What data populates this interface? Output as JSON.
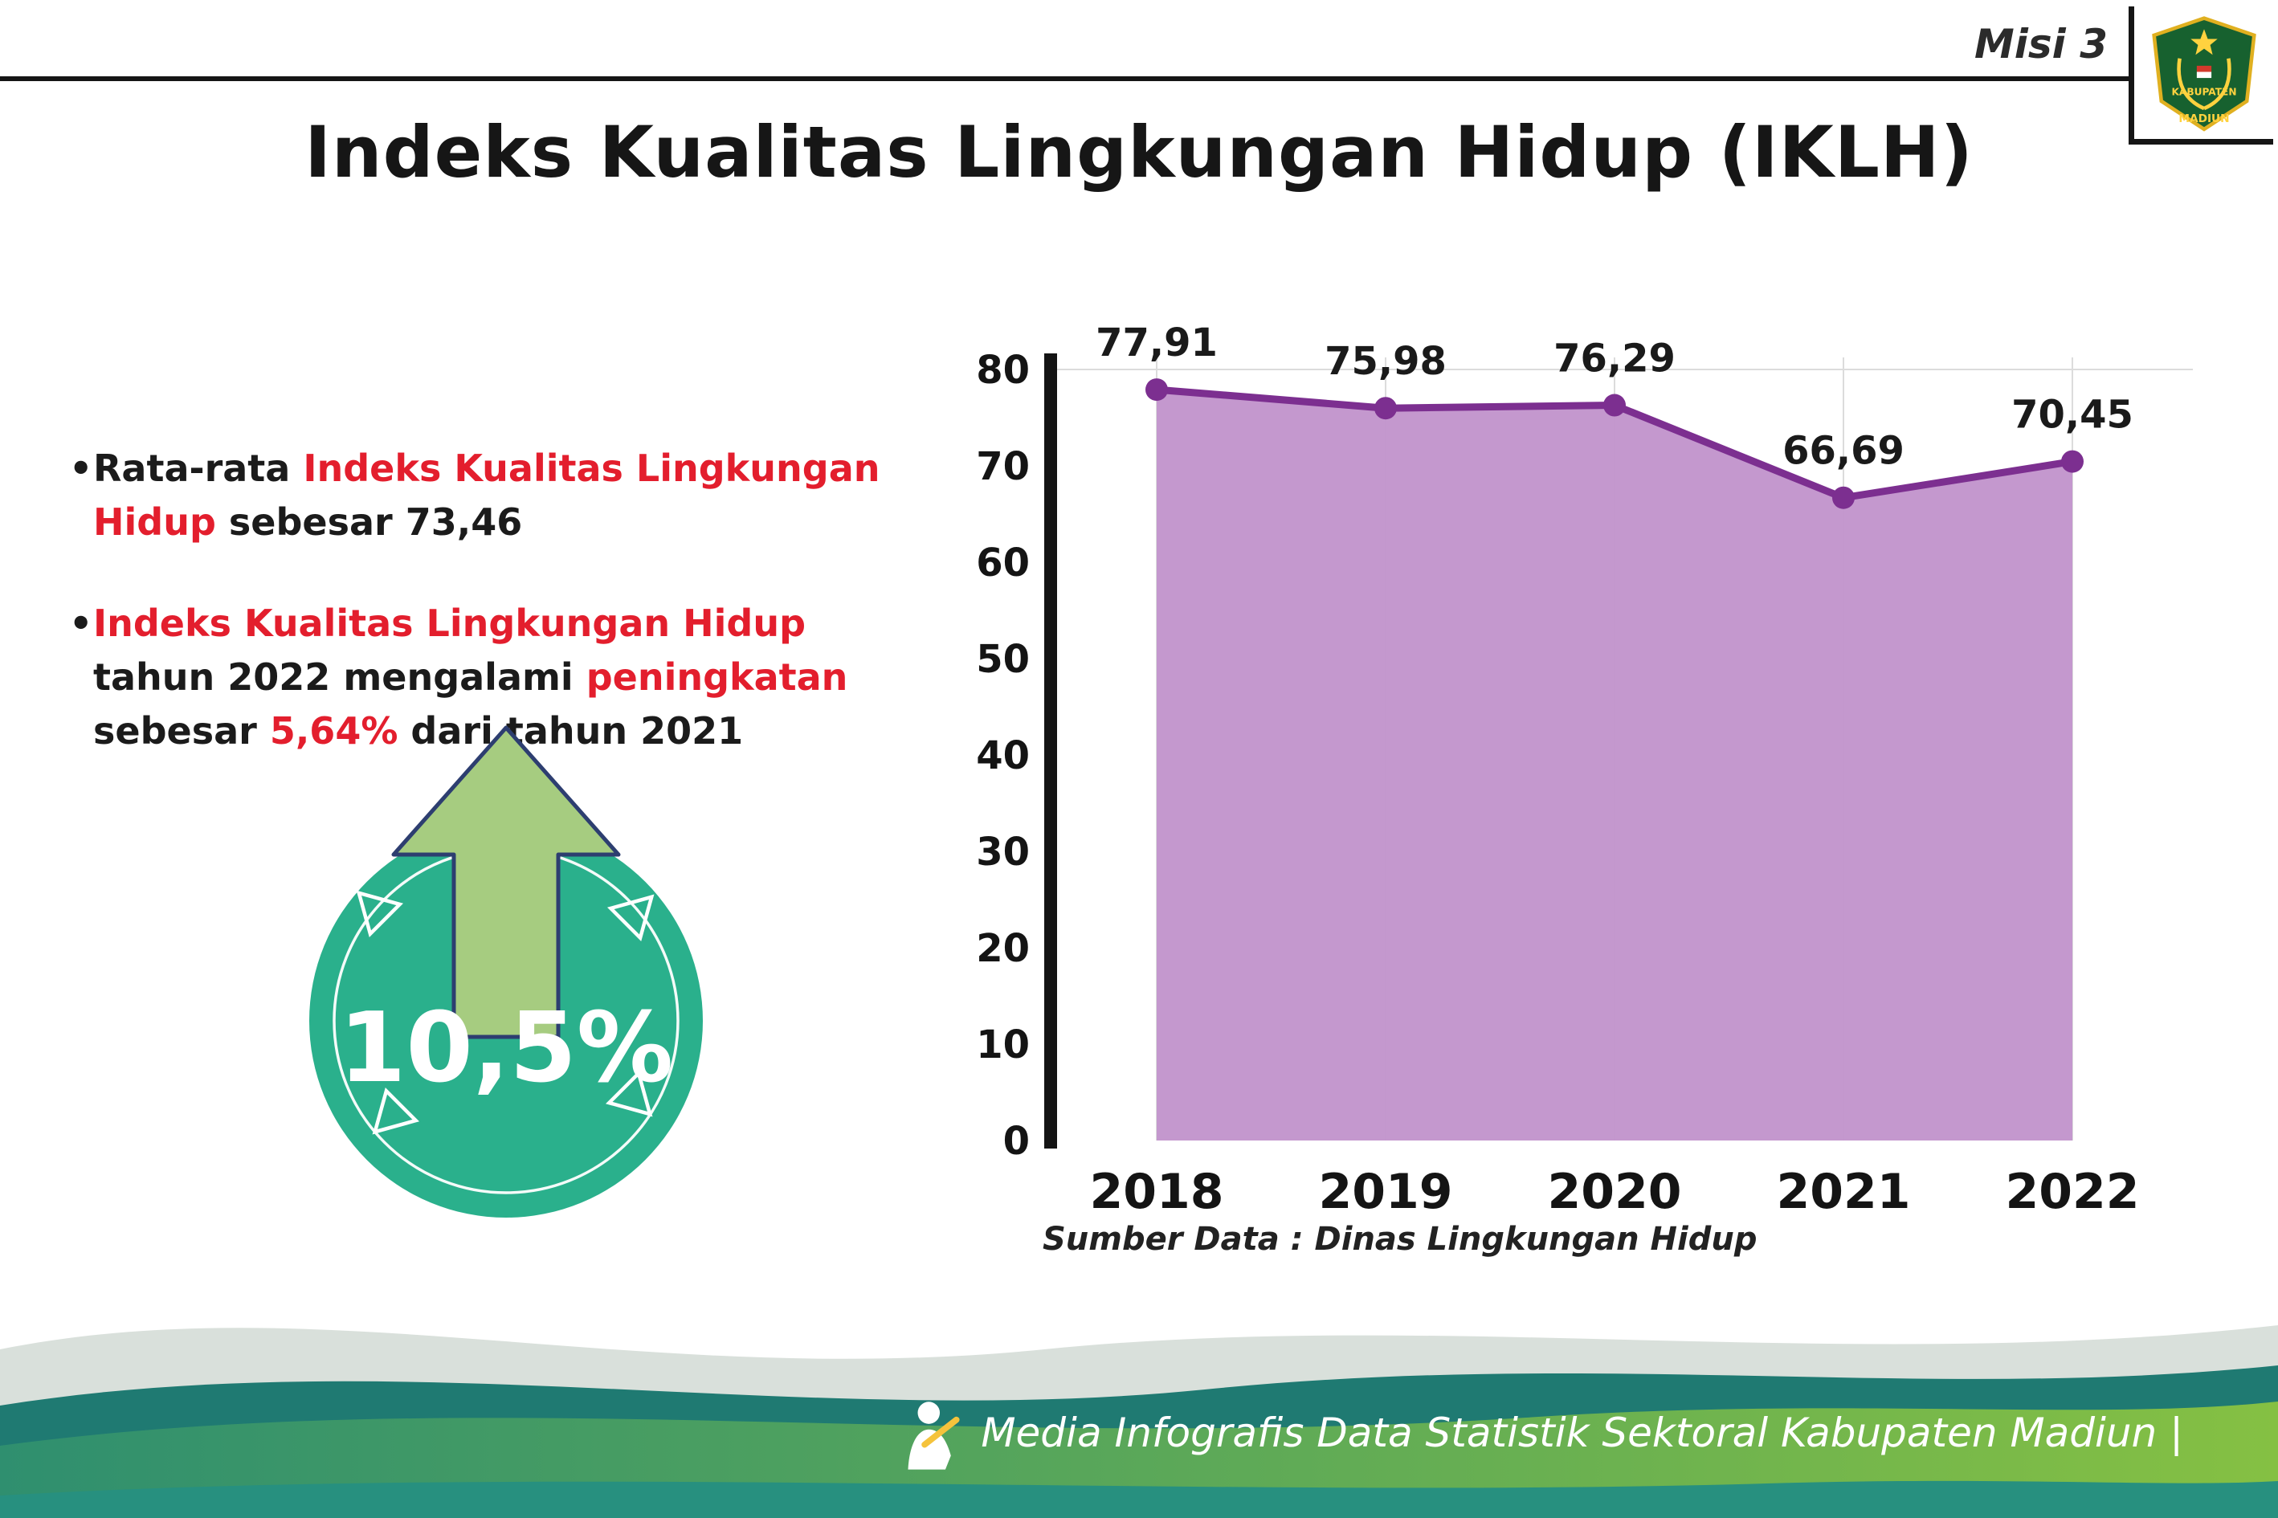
{
  "header": {
    "misi": "Misi 3",
    "title": "Indeks Kualitas Lingkungan Hidup (IKLH)"
  },
  "logo": {
    "line1": "KABUPATEN",
    "line2": "MADIUN"
  },
  "bullets": {
    "b1": {
      "s1": "Rata-rata ",
      "s2": "Indeks Kualitas Lingkungan Hidup",
      "s3": " sebesar 73,46"
    },
    "b2": {
      "s1": "Indeks Kualitas Lingkungan Hidup",
      "s2": " tahun 2022 mengalami ",
      "s3": "peningkatan",
      "s4": " sebesar ",
      "s5": "5,64%",
      "s6": " dari tahun 2021"
    }
  },
  "badge": {
    "value": "10,5%"
  },
  "chart_data": {
    "type": "area",
    "title": "Indeks Kualitas Lingkungan Hidup (IKLH)",
    "categories": [
      "2018",
      "2019",
      "2020",
      "2021",
      "2022"
    ],
    "values": [
      77.91,
      75.98,
      76.29,
      66.69,
      70.45
    ],
    "value_labels": [
      "77,91",
      "75,98",
      "76,29",
      "66,69",
      "70,45"
    ],
    "xlabel": "",
    "ylabel": "",
    "ylim": [
      0,
      80
    ],
    "ytick_step": 10,
    "grid": "faint vertical gridlines at each year, faint top line at 80",
    "legend": "none",
    "source": "Sumber Data : Dinas Lingkungan Hidup",
    "colors": {
      "area_fill": "#c192cb",
      "line": "#7c2f90",
      "point": "#7c2f90",
      "axis": "#141414",
      "label": "#1a1a1a",
      "grid": "#dcdcdc"
    }
  },
  "footer": {
    "text": "Media Infografis Data Statistik Sektoral Kabupaten Madiun |"
  },
  "colors": {
    "accent_red": "#e31e2d",
    "badge_teal": "#2ab08c",
    "arrow_green": "#a6cc80",
    "arrow_outline": "#2d3e70",
    "wave_light": "#b9c6bd",
    "wave_teal_dark": "#1f7a72",
    "wave_green": "#85c043",
    "wave_bottom": "#27907f"
  }
}
